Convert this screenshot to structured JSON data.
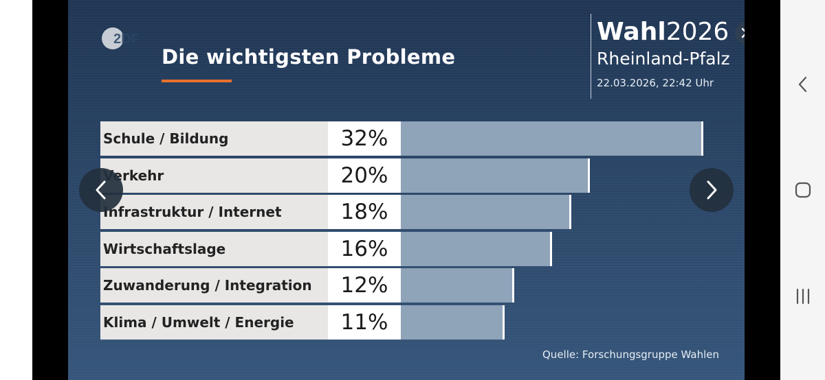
{
  "header": {
    "logo_text": "2DF",
    "title": "Die wichtigsten Probleme"
  },
  "brand": {
    "wahl": "Wahl",
    "year": "2026",
    "region": "Rheinland-Pfalz",
    "datetime": "22.03.2026, 22:42 Uhr"
  },
  "source": "Quelle: Forschungsgruppe Wahlen",
  "colors": {
    "background": "#2a4566",
    "label_bg": "#e9e7e6",
    "bar": "#8fa3b9",
    "accent": "#e8722c"
  },
  "icons": {
    "close": "close-icon",
    "prev": "chevron-left-icon",
    "next": "chevron-right-icon"
  },
  "chart_data": {
    "type": "bar",
    "orientation": "horizontal",
    "title": "Die wichtigsten Probleme",
    "categories": [
      "Schule / Bildung",
      "Verkehr",
      "Infrastruktur / Internet",
      "Wirtschaftslage",
      "Zuwanderung / Integration",
      "Klima / Umwelt / Energie"
    ],
    "values": [
      32,
      20,
      18,
      16,
      12,
      11
    ],
    "value_labels": [
      "32%",
      "20%",
      "18%",
      "16%",
      "12%",
      "11%"
    ],
    "unit": "%",
    "xlim": [
      0,
      32
    ]
  }
}
